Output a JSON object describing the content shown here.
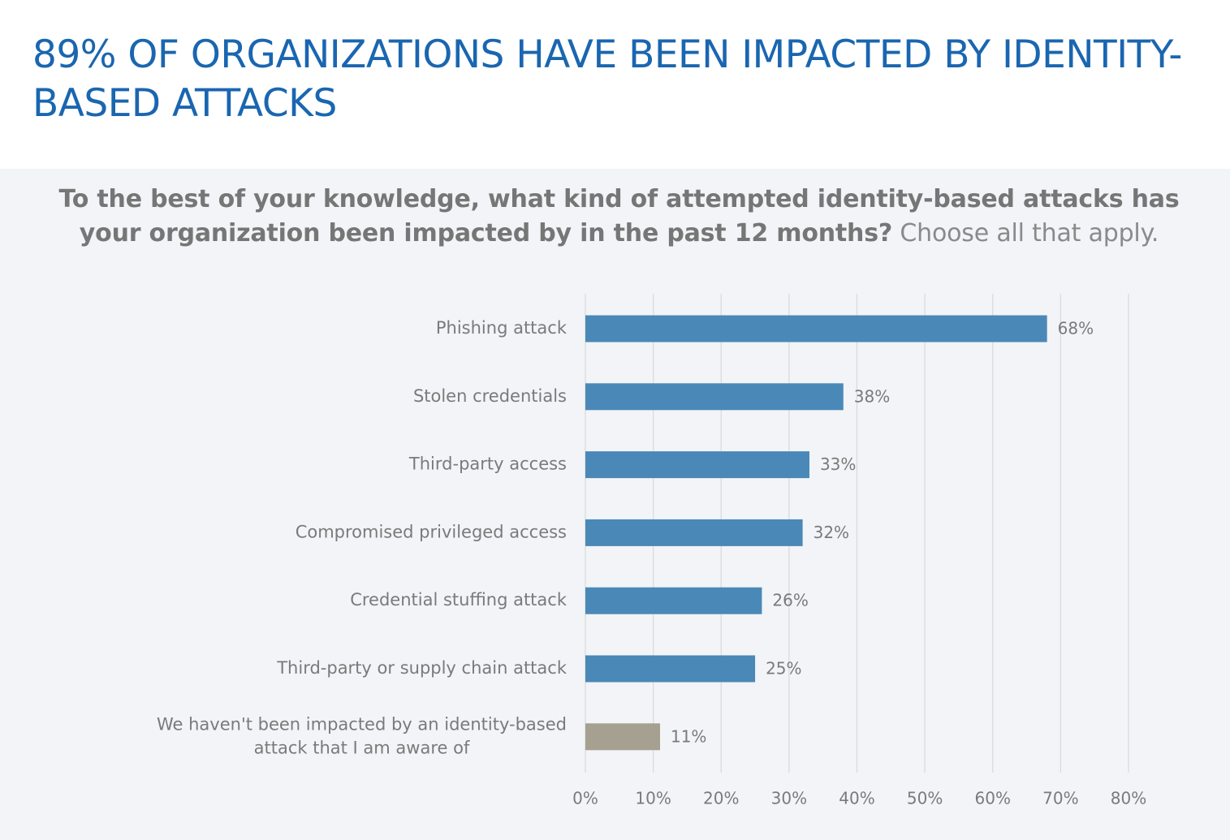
{
  "headline": "89% OF ORGANIZATIONS HAVE BEEN IMPACTED BY IDENTITY-BASED ATTACKS",
  "question": {
    "bold": "To the best of your knowledge, what kind of attempted identity-based attacks has your organization been impacted by in the past 12 months?",
    "light": "Choose all that apply."
  },
  "colors": {
    "headline": "#1a66b0",
    "bar_primary": "#4a88b8",
    "bar_secondary": "#a6a090",
    "panel_background": "#f2f4f7",
    "text": "#7a7a7a"
  },
  "chart_data": {
    "type": "bar",
    "orientation": "horizontal",
    "title": "To the best of your knowledge, what kind of attempted identity-based attacks has your organization been impacted by in the past 12 months? Choose all that apply.",
    "categories": [
      [
        "Phishing attack"
      ],
      [
        "Stolen credentials"
      ],
      [
        "Third-party access"
      ],
      [
        "Compromised privileged access"
      ],
      [
        "Credential stuffing attack"
      ],
      [
        "Third-party or supply chain attack"
      ],
      [
        "We haven't been impacted by an identity-based",
        "attack that I am aware of"
      ]
    ],
    "values": [
      68,
      38,
      33,
      32,
      26,
      25,
      11
    ],
    "value_labels": [
      "68%",
      "38%",
      "33%",
      "32%",
      "26%",
      "25%",
      "11%"
    ],
    "bar_colors": [
      "#4a88b8",
      "#4a88b8",
      "#4a88b8",
      "#4a88b8",
      "#4a88b8",
      "#4a88b8",
      "#a6a090"
    ],
    "xlim": [
      0,
      80
    ],
    "x_ticks": [
      0,
      10,
      20,
      30,
      40,
      50,
      60,
      70,
      80
    ],
    "x_tick_labels": [
      "0%",
      "10%",
      "20%",
      "30%",
      "40%",
      "50%",
      "60%",
      "70%",
      "80%"
    ],
    "xlabel": "",
    "ylabel": "",
    "grid": true,
    "legend": false
  }
}
